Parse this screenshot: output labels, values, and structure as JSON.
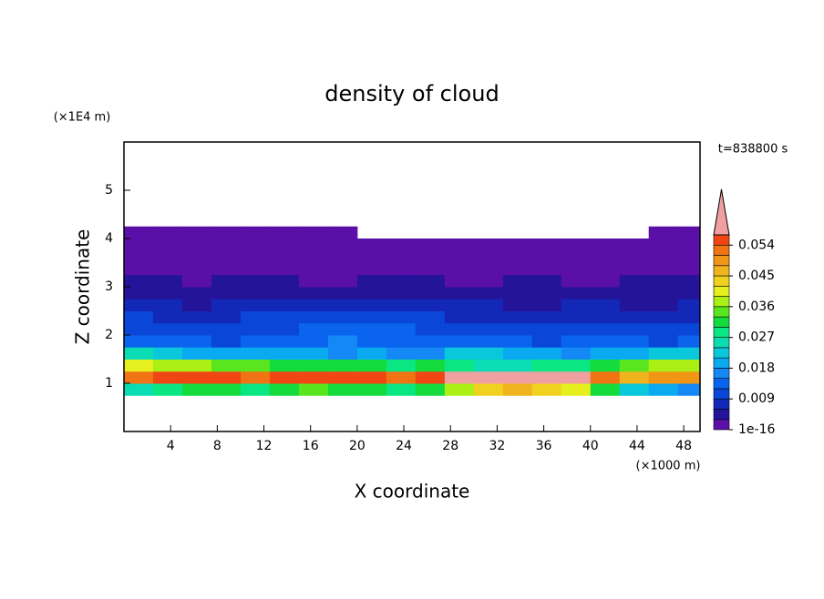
{
  "chart_data": {
    "type": "contour",
    "title": "density of cloud",
    "x_label": "X coordinate",
    "y_label": "Z coordinate",
    "x_unit": "(×1000 m)",
    "y_unit": "(×1E4 m)",
    "time_label": "t=838800 s",
    "xlim": [
      0,
      49.4
    ],
    "ylim": [
      0,
      6
    ],
    "xticks": [
      4,
      8,
      12,
      16,
      20,
      24,
      28,
      32,
      36,
      40,
      44,
      48
    ],
    "yticks": [
      1,
      2,
      3,
      4,
      5
    ],
    "x_edges": [
      0,
      2.5,
      5,
      7.5,
      10,
      12.5,
      15,
      17.5,
      20,
      22.5,
      25,
      27.5,
      30,
      32.5,
      35,
      37.5,
      40,
      42.5,
      45,
      47.5,
      49.4
    ],
    "y_edges": [
      0.75,
      1,
      1.25,
      1.5,
      1.75,
      2,
      2.25,
      2.5,
      2.75,
      3,
      3.25,
      3.5,
      3.75,
      4,
      4.25
    ],
    "z": [
      [
        0.024,
        0.027,
        0.03,
        0.03,
        0.027,
        0.03,
        0.033,
        0.03,
        0.03,
        0.027,
        0.03,
        0.036,
        0.042,
        0.045,
        0.042,
        0.039,
        0.03,
        0.021,
        0.018,
        0.015
      ],
      [
        0.052,
        0.055,
        0.056,
        0.055,
        0.053,
        0.055,
        0.056,
        0.055,
        0.054,
        0.053,
        0.055,
        0.058,
        0.06,
        0.061,
        0.06,
        0.058,
        0.052,
        0.045,
        0.048,
        0.05
      ],
      [
        0.04,
        0.038,
        0.036,
        0.035,
        0.033,
        0.032,
        0.031,
        0.03,
        0.03,
        0.028,
        0.03,
        0.027,
        0.026,
        0.025,
        0.027,
        0.028,
        0.03,
        0.035,
        0.038,
        0.037
      ],
      [
        0.024,
        0.022,
        0.02,
        0.02,
        0.019,
        0.018,
        0.018,
        0.017,
        0.018,
        0.016,
        0.017,
        0.021,
        0.022,
        0.019,
        0.018,
        0.017,
        0.018,
        0.02,
        0.022,
        0.021
      ],
      [
        0.014,
        0.013,
        0.012,
        0.011,
        0.012,
        0.013,
        0.014,
        0.015,
        0.014,
        0.013,
        0.012,
        0.012,
        0.013,
        0.012,
        0.011,
        0.012,
        0.013,
        0.012,
        0.011,
        0.012
      ],
      [
        0.011,
        0.01,
        0.01,
        0.009,
        0.01,
        0.011,
        0.012,
        0.013,
        0.013,
        0.012,
        0.011,
        0.01,
        0.011,
        0.01,
        0.009,
        0.01,
        0.011,
        0.01,
        0.009,
        0.01
      ],
      [
        0.009,
        0.008,
        0.008,
        0.008,
        0.009,
        0.01,
        0.01,
        0.011,
        0.011,
        0.01,
        0.009,
        0.008,
        0.008,
        0.008,
        0.007,
        0.008,
        0.008,
        0.007,
        0.007,
        0.008
      ],
      [
        0.006,
        0.006,
        0.005,
        0.006,
        0.006,
        0.007,
        0.008,
        0.008,
        0.008,
        0.007,
        0.006,
        0.006,
        0.006,
        0.005,
        0.005,
        0.006,
        0.006,
        0.005,
        0.005,
        0.006
      ],
      [
        0.004,
        0.004,
        0.004,
        0.005,
        0.004,
        0.005,
        0.005,
        0.005,
        0.004,
        0.004,
        0.004,
        0.004,
        0.004,
        0.004,
        0.004,
        0.004,
        0.004,
        0.004,
        0.004,
        0.004
      ],
      [
        0.004,
        0.003,
        0.002,
        0.003,
        0.004,
        0.003,
        0.002,
        0.002,
        0.003,
        0.004,
        0.003,
        0.002,
        0.002,
        0.003,
        0.003,
        0.002,
        0.002,
        0.003,
        0.004,
        0.003
      ],
      [
        0.002,
        0.002,
        0.002,
        0.002,
        0.002,
        0.002,
        0.002,
        0.002,
        0.002,
        0.002,
        0.002,
        0.002,
        0.002,
        0.002,
        0.002,
        0.002,
        0.002,
        0.002,
        0.002,
        0.002
      ],
      [
        0.001,
        0.001,
        0.001,
        0.001,
        0.001,
        0.001,
        0.001,
        0.001,
        0.001,
        0.001,
        0.001,
        0.001,
        0.001,
        0.001,
        0.001,
        0.001,
        0.001,
        0.001,
        0.001,
        0.001
      ],
      [
        0.001,
        0.001,
        0.001,
        0.001,
        0.001,
        0.001,
        0.001,
        0.001,
        0.001,
        0.001,
        0.001,
        0.001,
        0.001,
        0.001,
        0.001,
        0.001,
        0.001,
        0.001,
        0.001,
        0.001
      ],
      [
        0.001,
        0.001,
        0.001,
        0.001,
        0.001,
        0.001,
        0.001,
        0.001,
        null,
        null,
        null,
        null,
        null,
        null,
        null,
        null,
        null,
        null,
        0.001,
        0.001
      ]
    ],
    "levels": [
      1e-16,
      0.003,
      0.006,
      0.009,
      0.012,
      0.015,
      0.018,
      0.021,
      0.024,
      0.027,
      0.03,
      0.033,
      0.036,
      0.039,
      0.042,
      0.045,
      0.048,
      0.051,
      0.054,
      0.057
    ],
    "colors": [
      "#5a0fa8",
      "#23149a",
      "#1428b8",
      "#0a46d8",
      "#0a64ee",
      "#1488f5",
      "#0aaaf0",
      "#0ac8dc",
      "#0adcb4",
      "#0ae682",
      "#14dc3c",
      "#5ae61e",
      "#aaf014",
      "#e6f01e",
      "#f0d21e",
      "#f0b41e",
      "#f09614",
      "#f07314",
      "#f04614"
    ],
    "extend_color": "#f0a0a0",
    "colorbar_ticks": [
      {
        "value": 1e-16,
        "label": "1e-16"
      },
      0.009,
      0.018,
      0.027,
      0.036,
      0.045,
      0.054
    ]
  }
}
